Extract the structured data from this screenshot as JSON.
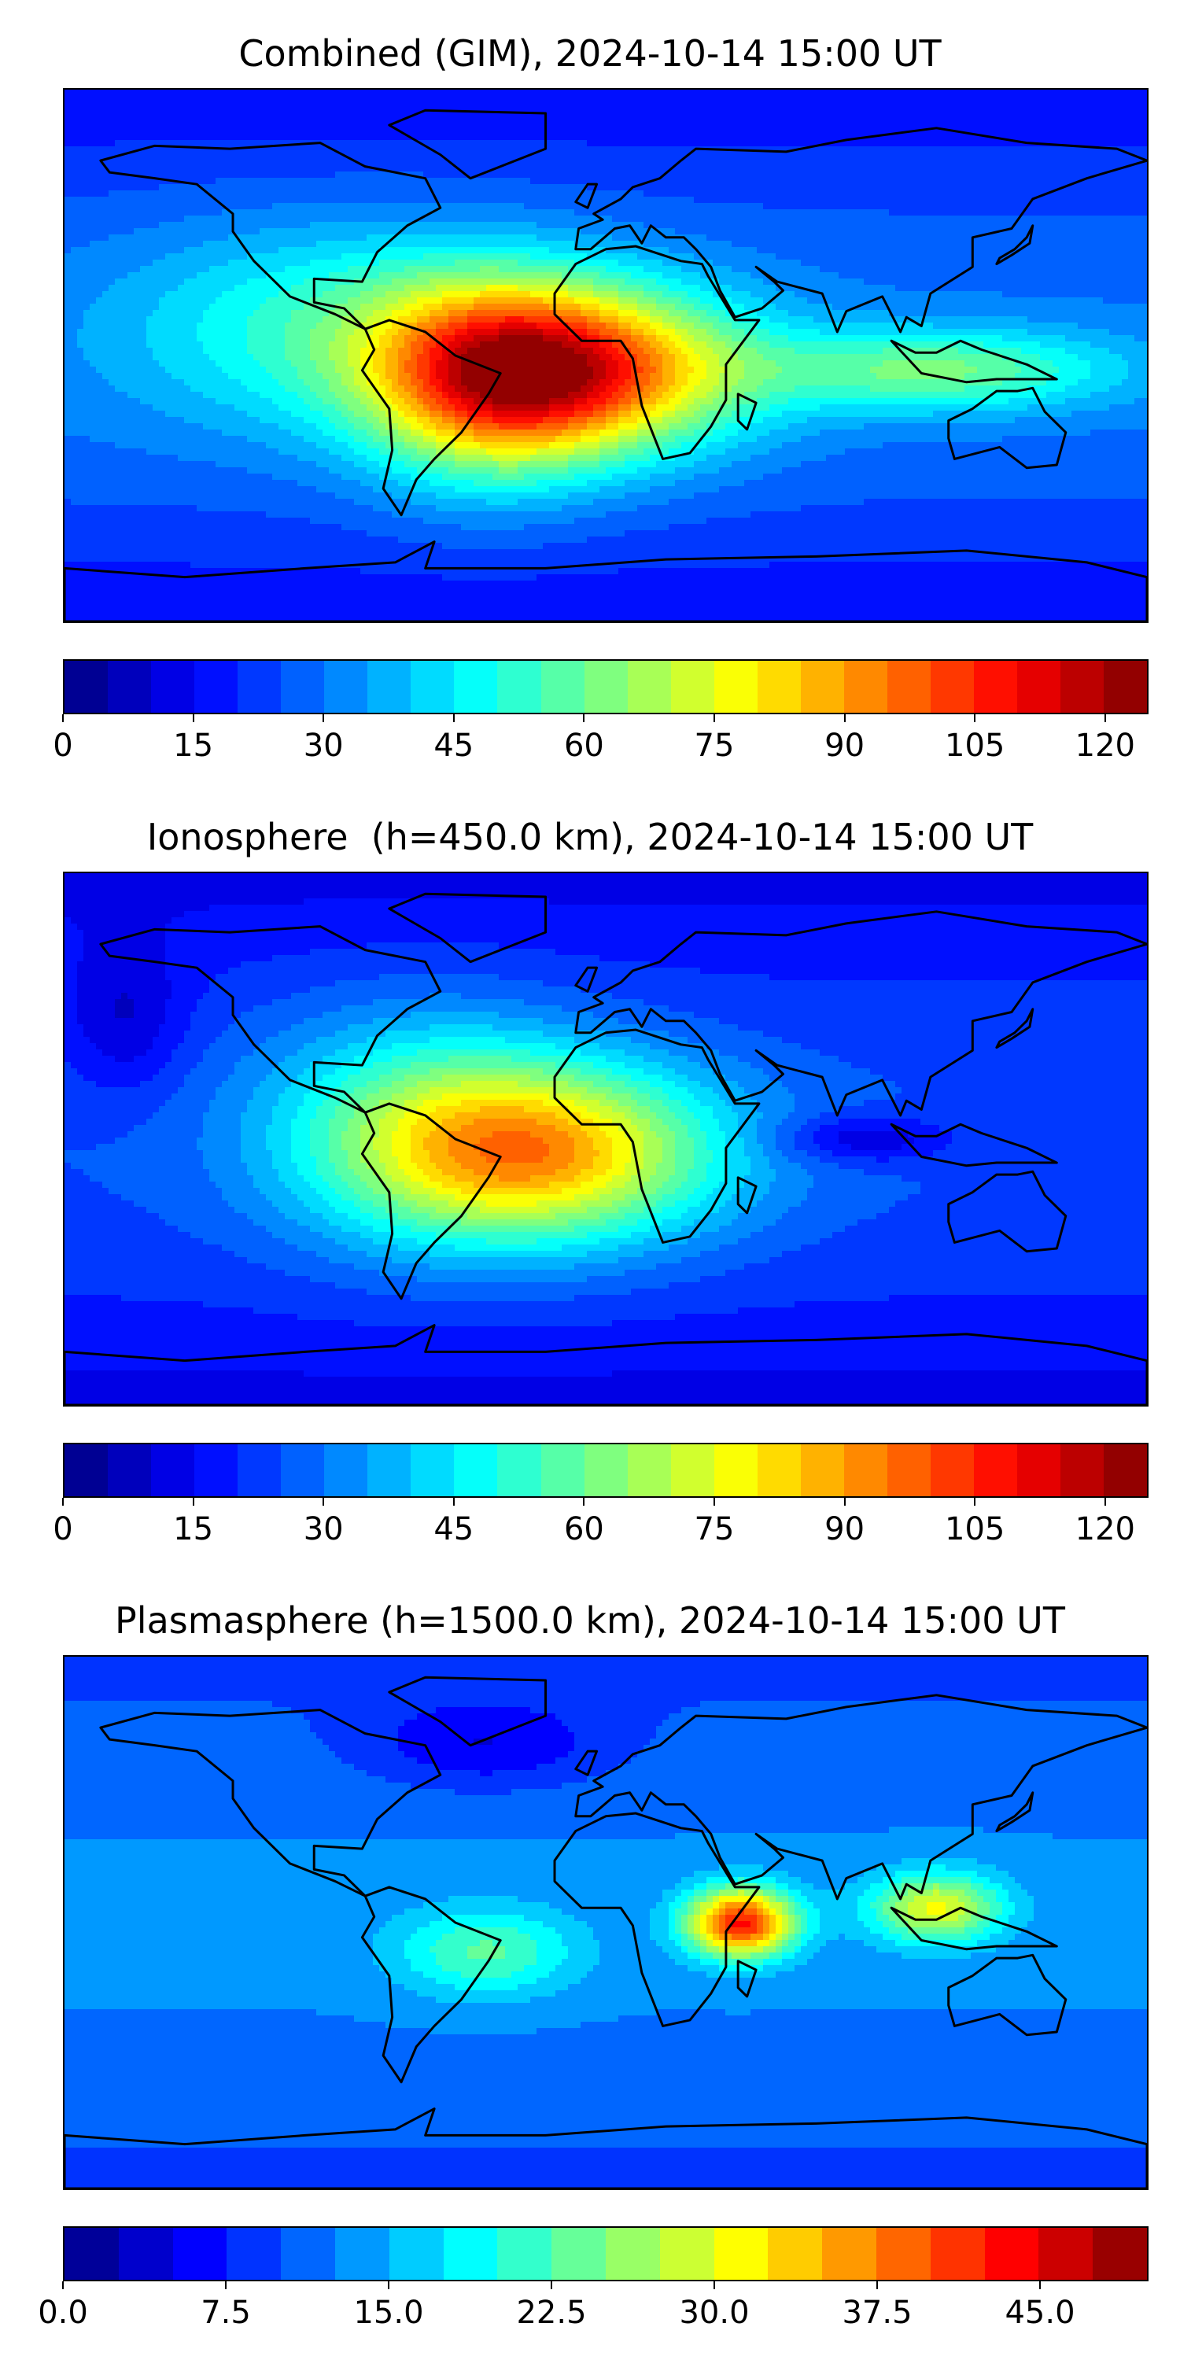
{
  "panels": [
    {
      "title": "Combined (GIM), 2024-10-14 15:00 UT",
      "colorbar": {
        "min": 0,
        "max": 125,
        "levels": 25,
        "ticks": [
          "0",
          "15",
          "30",
          "45",
          "60",
          "75",
          "90",
          "105",
          "120"
        ],
        "tick_values": [
          0,
          15,
          30,
          45,
          60,
          75,
          90,
          105,
          120
        ]
      }
    },
    {
      "title": "Ionosphere  (h=450.0 km), 2024-10-14 15:00 UT",
      "colorbar": {
        "min": 0,
        "max": 125,
        "levels": 25,
        "ticks": [
          "0",
          "15",
          "30",
          "45",
          "60",
          "75",
          "90",
          "105",
          "120"
        ],
        "tick_values": [
          0,
          15,
          30,
          45,
          60,
          75,
          90,
          105,
          120
        ]
      }
    },
    {
      "title": "Plasmasphere (h=1500.0 km), 2024-10-14 15:00 UT",
      "colorbar": {
        "min": 0,
        "max": 50,
        "levels": 20,
        "ticks": [
          "0.0",
          "7.5",
          "15.0",
          "22.5",
          "30.0",
          "37.5",
          "45.0"
        ],
        "tick_values": [
          0,
          7.5,
          15,
          22.5,
          30,
          37.5,
          45
        ]
      }
    }
  ],
  "colormap": "jet",
  "colors": {
    "jet": [
      "#00007f",
      "#0000ff",
      "#007fff",
      "#00ffff",
      "#7fff7f",
      "#ffff00",
      "#ff7f00",
      "#ff0000",
      "#7f0000"
    ],
    "coastline": "#000000"
  }
}
